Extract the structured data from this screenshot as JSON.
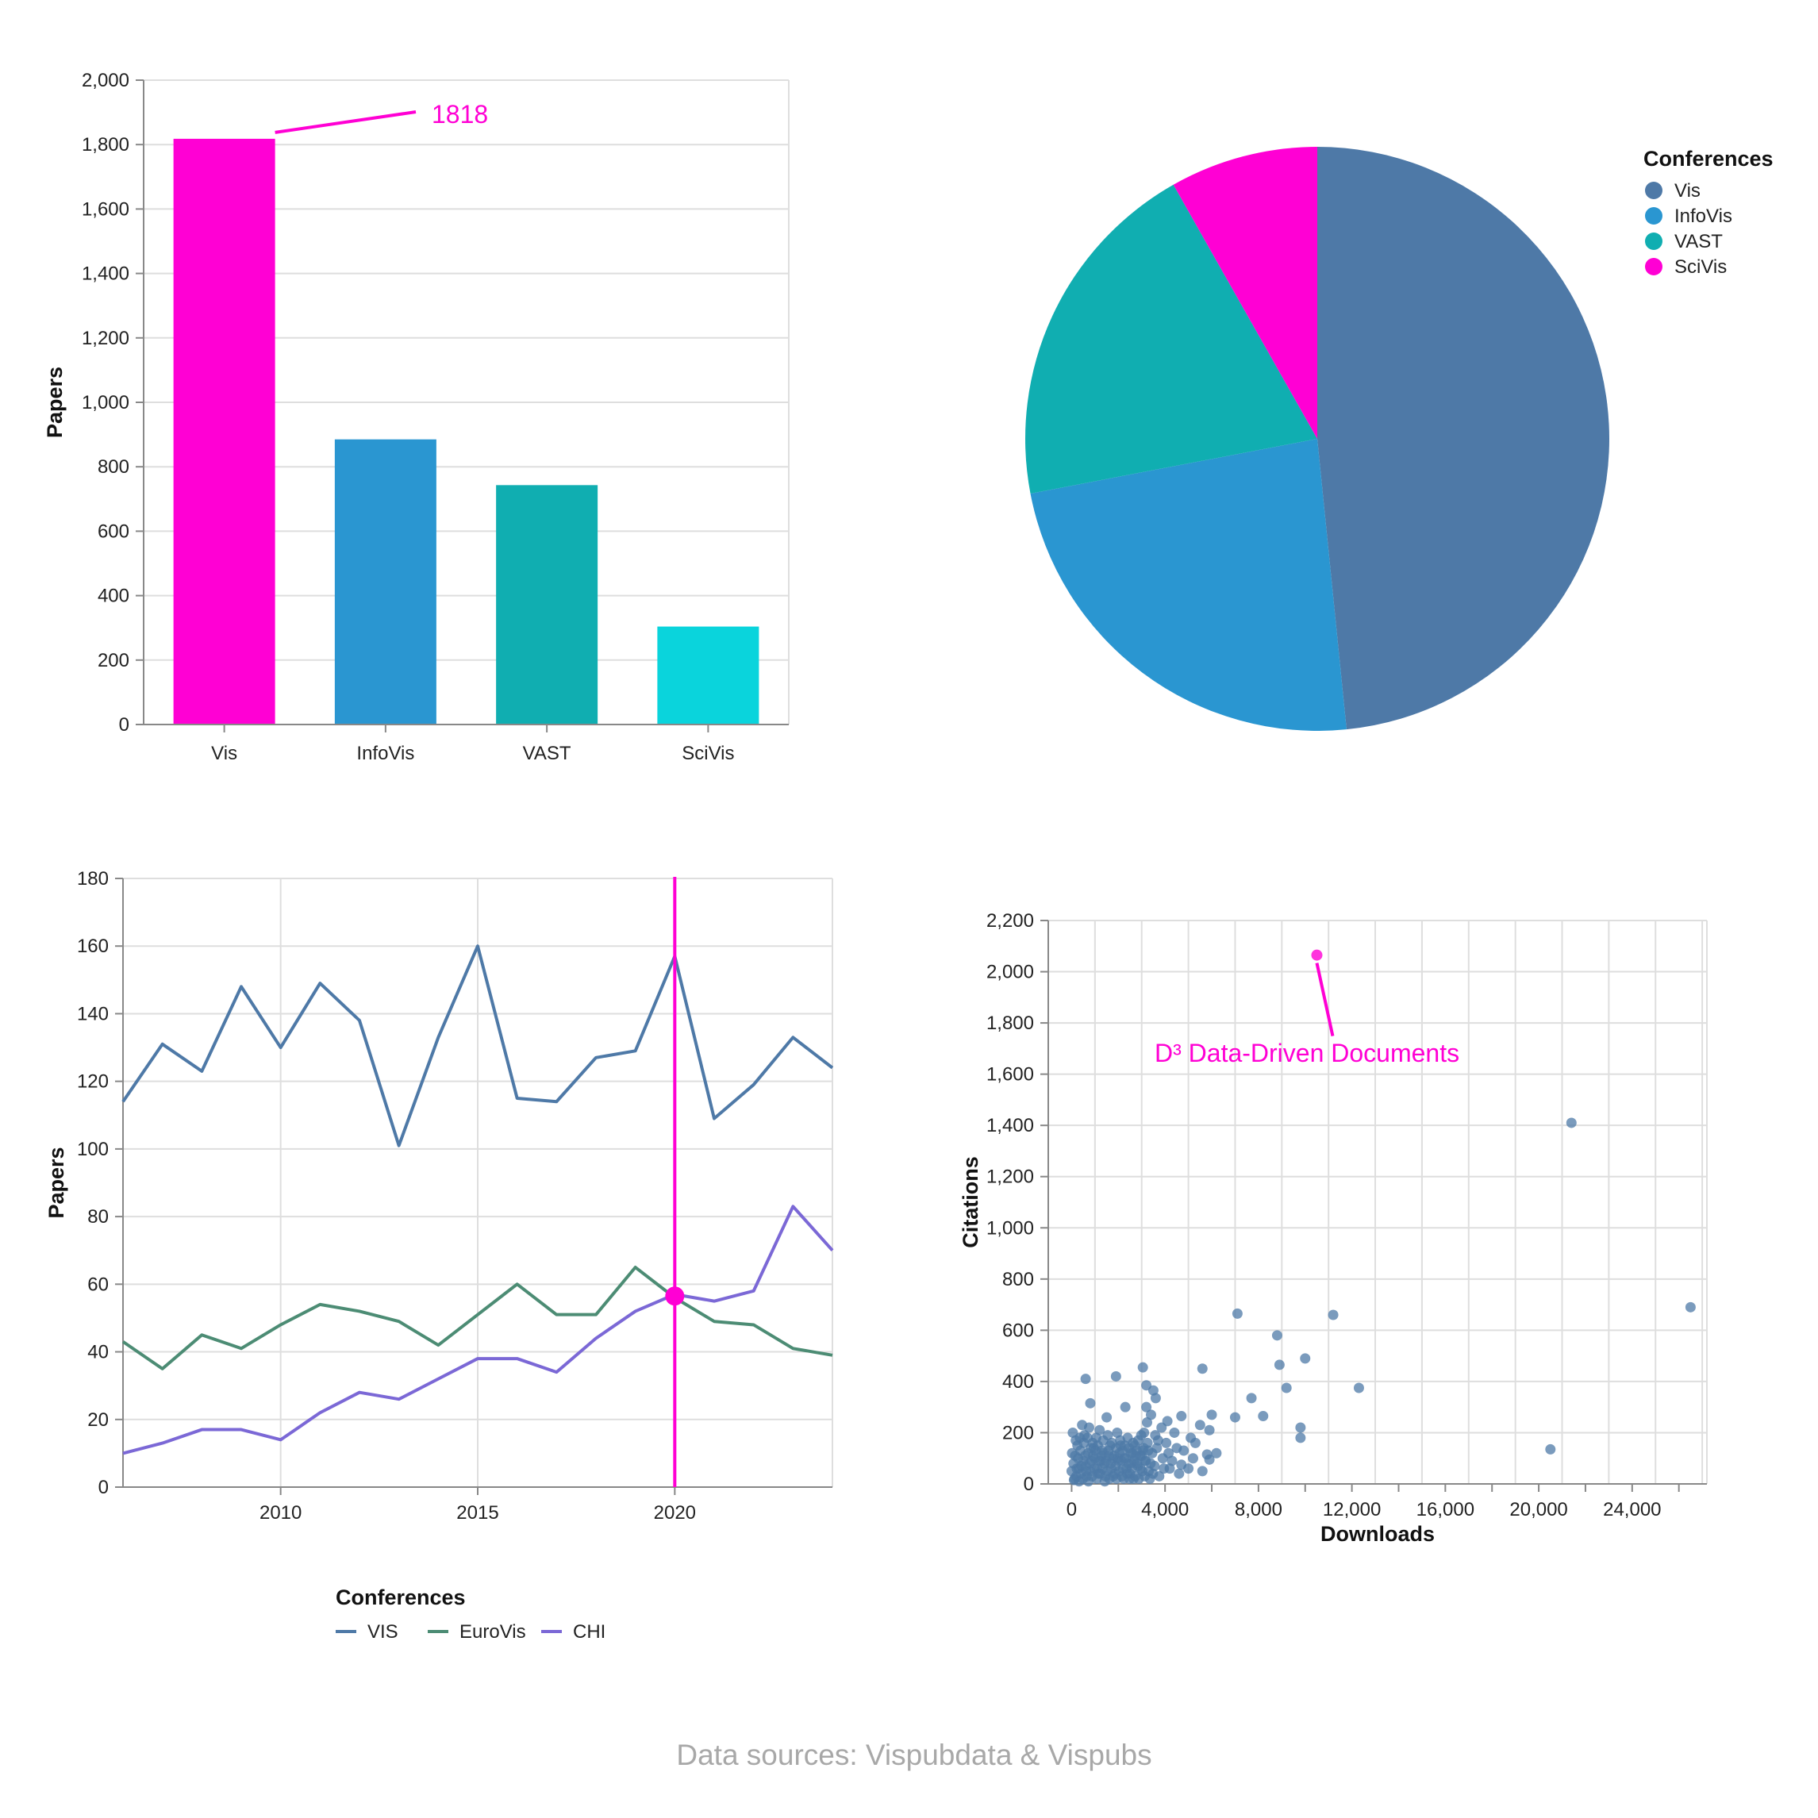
{
  "colors": {
    "vis": "#4e79a7",
    "infovis": "#2a96d1",
    "vast": "#10aeb1",
    "scivis_bar": "#0ad4dc",
    "highlight": "#ff00d4",
    "eurovis": "#4c8c74",
    "chi": "#7b68d6",
    "grid": "#dedede",
    "axis": "#888888"
  },
  "chart_data": [
    {
      "type": "bar",
      "ylabel": "Papers",
      "categories": [
        "Vis",
        "InfoVis",
        "VAST",
        "SciVis"
      ],
      "values": [
        1818,
        885,
        743,
        304
      ],
      "ylim": [
        0,
        2000
      ],
      "yticks": [
        0,
        200,
        400,
        600,
        800,
        1000,
        1200,
        1400,
        1600,
        1800,
        2000
      ],
      "ytick_labels": [
        "0",
        "200",
        "400",
        "600",
        "800",
        "1,000",
        "1,200",
        "1,400",
        "1,600",
        "1,800",
        "2,000"
      ],
      "highlight_index": 0,
      "annotation": "1818",
      "grid": true
    },
    {
      "type": "pie",
      "legend_title": "Conferences",
      "legend_position": "top-right",
      "slices": [
        {
          "label": "Vis",
          "value": 48.4
        },
        {
          "label": "InfoVis",
          "value": 23.6
        },
        {
          "label": "VAST",
          "value": 19.8
        },
        {
          "label": "SciVis",
          "value": 8.2
        }
      ]
    },
    {
      "type": "line",
      "ylabel": "Papers",
      "ylim": [
        0,
        180
      ],
      "yticks": [
        0,
        20,
        40,
        60,
        80,
        100,
        120,
        140,
        160,
        180
      ],
      "xlim": [
        2006,
        2024
      ],
      "xticks": [
        2010,
        2015,
        2020
      ],
      "x": [
        2006,
        2007,
        2008,
        2009,
        2010,
        2011,
        2012,
        2013,
        2014,
        2015,
        2016,
        2017,
        2018,
        2019,
        2020,
        2021,
        2022,
        2023,
        2024
      ],
      "series": [
        {
          "name": "VIS",
          "values": [
            114,
            131,
            123,
            148,
            130,
            149,
            138,
            101,
            133,
            160,
            115,
            114,
            127,
            129,
            157,
            109,
            119,
            133,
            124
          ]
        },
        {
          "name": "EuroVis",
          "values": [
            43,
            35,
            45,
            41,
            48,
            54,
            52,
            49,
            42,
            51,
            60,
            51,
            51,
            65,
            56,
            49,
            48,
            41,
            39
          ]
        },
        {
          "name": "CHI",
          "values": [
            10,
            13,
            17,
            17,
            14,
            22,
            28,
            26,
            32,
            38,
            38,
            34,
            44,
            52,
            57,
            55,
            58,
            83,
            70
          ]
        }
      ],
      "highlight_x": 2020,
      "highlight_y": 56.5,
      "legend_title": "Conferences",
      "legend_position": "bottom",
      "grid": true
    },
    {
      "type": "scatter",
      "xlabel": "Downloads",
      "ylabel": "Citations",
      "xlim": [
        -1000,
        27200
      ],
      "ylim": [
        0,
        2200
      ],
      "xticks": [
        0,
        4000,
        8000,
        12000,
        16000,
        20000,
        24000
      ],
      "xtick_labels": [
        "0",
        "4,000",
        "8,000",
        "12,000",
        "16,000",
        "20,000",
        "24,000"
      ],
      "yticks": [
        0,
        200,
        400,
        600,
        800,
        1000,
        1200,
        1400,
        1600,
        1800,
        2000,
        2200
      ],
      "ytick_labels": [
        "0",
        "200",
        "400",
        "600",
        "800",
        "1,000",
        "1,200",
        "1,400",
        "1,600",
        "1,800",
        "2,000",
        "2,200"
      ],
      "points": [
        [
          10500,
          2065
        ],
        [
          21400,
          1410
        ],
        [
          26500,
          690
        ],
        [
          7100,
          665
        ],
        [
          11200,
          660
        ],
        [
          8800,
          580
        ],
        [
          10000,
          490
        ],
        [
          8900,
          465
        ],
        [
          3050,
          455
        ],
        [
          5600,
          450
        ],
        [
          600,
          410
        ],
        [
          1900,
          420
        ],
        [
          12300,
          375
        ],
        [
          9200,
          375
        ],
        [
          3500,
          365
        ],
        [
          3200,
          385
        ],
        [
          7700,
          335
        ],
        [
          3600,
          335
        ],
        [
          800,
          315
        ],
        [
          3200,
          300
        ],
        [
          6000,
          270
        ],
        [
          4700,
          265
        ],
        [
          7000,
          260
        ],
        [
          8200,
          265
        ],
        [
          9800,
          220
        ],
        [
          9800,
          180
        ],
        [
          20500,
          135
        ],
        [
          3400,
          270
        ],
        [
          4100,
          245
        ],
        [
          2300,
          300
        ],
        [
          5500,
          230
        ],
        [
          5900,
          210
        ],
        [
          5100,
          180
        ],
        [
          5800,
          115
        ],
        [
          5900,
          95
        ],
        [
          4700,
          75
        ],
        [
          4500,
          140
        ],
        [
          3700,
          170
        ],
        [
          3900,
          100
        ],
        [
          3300,
          50
        ],
        [
          2600,
          120
        ],
        [
          2800,
          80
        ],
        [
          2400,
          180
        ],
        [
          2100,
          150
        ],
        [
          1500,
          260
        ],
        [
          1200,
          210
        ],
        [
          900,
          160
        ],
        [
          700,
          120
        ],
        [
          500,
          90
        ],
        [
          300,
          60
        ],
        [
          200,
          30
        ],
        [
          100,
          15
        ],
        [
          400,
          40
        ],
        [
          600,
          70
        ],
        [
          800,
          50
        ],
        [
          1000,
          100
        ],
        [
          1100,
          60
        ],
        [
          1300,
          130
        ],
        [
          1400,
          80
        ],
        [
          1600,
          110
        ],
        [
          1700,
          60
        ],
        [
          1900,
          140
        ],
        [
          2000,
          90
        ],
        [
          2200,
          60
        ],
        [
          2500,
          40
        ],
        [
          2700,
          150
        ],
        [
          3000,
          110
        ],
        [
          3100,
          200
        ],
        [
          4200,
          60
        ],
        [
          4400,
          200
        ],
        [
          5200,
          100
        ],
        [
          50,
          200
        ],
        [
          150,
          110
        ],
        [
          250,
          150
        ],
        [
          350,
          180
        ],
        [
          450,
          230
        ],
        [
          550,
          190
        ],
        [
          650,
          30
        ],
        [
          750,
          220
        ],
        [
          850,
          90
        ],
        [
          950,
          140
        ],
        [
          1050,
          180
        ],
        [
          1150,
          40
        ],
        [
          1250,
          90
        ],
        [
          1350,
          170
        ],
        [
          1450,
          30
        ],
        [
          1550,
          190
        ],
        [
          1650,
          150
        ],
        [
          1750,
          100
        ],
        [
          1850,
          40
        ],
        [
          1950,
          200
        ],
        [
          2050,
          120
        ],
        [
          2150,
          30
        ],
        [
          2250,
          100
        ],
        [
          2350,
          60
        ],
        [
          2450,
          140
        ],
        [
          2550,
          80
        ],
        [
          2650,
          20
        ],
        [
          2750,
          110
        ],
        [
          2850,
          170
        ],
        [
          2950,
          60
        ],
        [
          3050,
          130
        ],
        [
          3150,
          90
        ],
        [
          3250,
          160
        ],
        [
          3350,
          20
        ],
        [
          3450,
          120
        ],
        [
          3550,
          70
        ],
        [
          3650,
          140
        ],
        [
          3750,
          30
        ],
        [
          3850,
          220
        ],
        [
          3950,
          60
        ],
        [
          4050,
          160
        ],
        [
          4150,
          120
        ],
        [
          4300,
          90
        ],
        [
          4600,
          40
        ],
        [
          4800,
          130
        ],
        [
          5000,
          60
        ],
        [
          5300,
          160
        ],
        [
          5600,
          50
        ],
        [
          6200,
          120
        ],
        [
          0,
          50
        ],
        [
          20,
          120
        ],
        [
          80,
          80
        ],
        [
          120,
          20
        ],
        [
          180,
          170
        ],
        [
          220,
          60
        ],
        [
          280,
          100
        ],
        [
          320,
          10
        ],
        [
          380,
          130
        ],
        [
          420,
          70
        ],
        [
          480,
          20
        ],
        [
          520,
          160
        ],
        [
          580,
          110
        ],
        [
          620,
          50
        ],
        [
          680,
          180
        ],
        [
          720,
          10
        ],
        [
          780,
          80
        ],
        [
          820,
          140
        ],
        [
          880,
          30
        ],
        [
          920,
          110
        ],
        [
          980,
          60
        ],
        [
          1020,
          130
        ],
        [
          1080,
          20
        ],
        [
          1120,
          150
        ],
        [
          1180,
          90
        ],
        [
          1220,
          40
        ],
        [
          1280,
          110
        ],
        [
          1320,
          60
        ],
        [
          1380,
          120
        ],
        [
          1420,
          10
        ],
        [
          1480,
          90
        ],
        [
          1520,
          50
        ],
        [
          1580,
          130
        ],
        [
          1620,
          20
        ],
        [
          1680,
          80
        ],
        [
          1720,
          160
        ],
        [
          1780,
          30
        ],
        [
          1820,
          110
        ],
        [
          1880,
          70
        ],
        [
          1920,
          20
        ],
        [
          1980,
          100
        ],
        [
          2030,
          50
        ],
        [
          2080,
          170
        ],
        [
          2130,
          90
        ],
        [
          2180,
          130
        ],
        [
          2230,
          20
        ],
        [
          2280,
          150
        ],
        [
          2330,
          100
        ],
        [
          2380,
          40
        ],
        [
          2430,
          80
        ],
        [
          2480,
          20
        ],
        [
          2530,
          120
        ],
        [
          2580,
          60
        ],
        [
          2630,
          160
        ],
        [
          2680,
          90
        ],
        [
          2730,
          30
        ],
        [
          2780,
          130
        ],
        [
          2830,
          70
        ],
        [
          2880,
          20
        ],
        [
          2930,
          110
        ],
        [
          2980,
          190
        ],
        [
          3030,
          50
        ],
        [
          3080,
          140
        ],
        [
          3130,
          30
        ],
        [
          3180,
          90
        ],
        [
          3230,
          240
        ],
        [
          3280,
          130
        ],
        [
          3380,
          80
        ],
        [
          3480,
          40
        ],
        [
          3580,
          190
        ]
      ],
      "highlight_index": 0,
      "annotation": "D³ Data-Driven Documents",
      "grid": true
    }
  ],
  "footer": {
    "source": "Data sources: Vispubdata & Vispubs"
  }
}
